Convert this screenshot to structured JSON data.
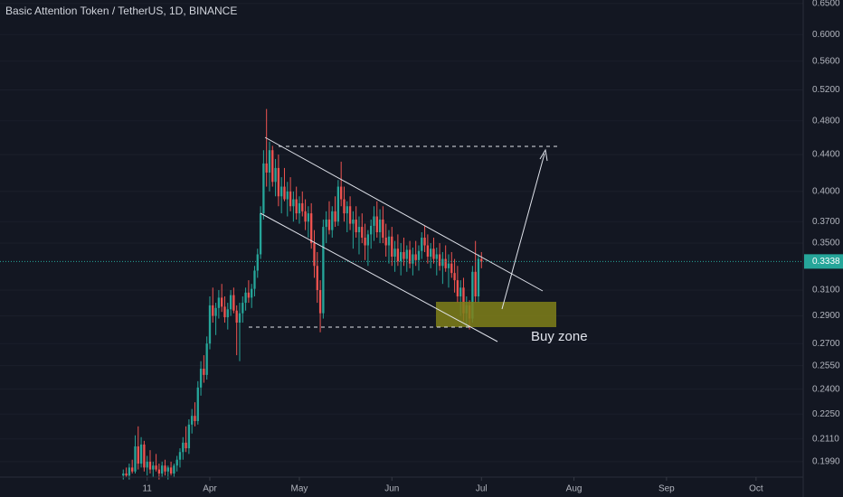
{
  "chart_data": {
    "type": "candlestick",
    "title": "Basic Attention Token / TetherUS, 1D, BINANCE",
    "log_scale": true,
    "up_color": "#26a69a",
    "down_color": "#ef5350",
    "annotation": "Buy zone",
    "last_price": 0.3338,
    "xlim": [
      20.7,
      289.8
    ],
    "xticks": [
      {
        "value": 70,
        "label": "11"
      },
      {
        "value": 91,
        "label": "Apr"
      },
      {
        "value": 121,
        "label": "May"
      },
      {
        "value": 152,
        "label": "Jun"
      },
      {
        "value": 182,
        "label": "Jul"
      },
      {
        "value": 213,
        "label": "Aug"
      },
      {
        "value": 244,
        "label": "Sep"
      },
      {
        "value": 274,
        "label": "Oct"
      }
    ],
    "ylim": [
      0.1912,
      0.656
    ],
    "yticks": [
      {
        "value": 0.65,
        "label": "0.6500"
      },
      {
        "value": 0.6,
        "label": "0.6000"
      },
      {
        "value": 0.56,
        "label": "0.5600"
      },
      {
        "value": 0.52,
        "label": "0.5200"
      },
      {
        "value": 0.48,
        "label": "0.4800"
      },
      {
        "value": 0.44,
        "label": "0.4400"
      },
      {
        "value": 0.4,
        "label": "0.4000"
      },
      {
        "value": 0.37,
        "label": "0.3700"
      },
      {
        "value": 0.35,
        "label": "0.3500"
      },
      {
        "value": 0.31,
        "label": "0.3100"
      },
      {
        "value": 0.29,
        "label": "0.2900"
      },
      {
        "value": 0.27,
        "label": "0.2700"
      },
      {
        "value": 0.255,
        "label": "0.2550"
      },
      {
        "value": 0.24,
        "label": "0.2400"
      },
      {
        "value": 0.225,
        "label": "0.2250"
      },
      {
        "value": 0.211,
        "label": "0.2110"
      },
      {
        "value": 0.199,
        "label": "0.1990"
      }
    ],
    "x": [
      62,
      63,
      64,
      65,
      66,
      67,
      68,
      69,
      70,
      71,
      72,
      73,
      74,
      75,
      76,
      77,
      78,
      79,
      80,
      81,
      82,
      83,
      84,
      85,
      86,
      87,
      88,
      89,
      90,
      91,
      92,
      93,
      94,
      95,
      96,
      97,
      98,
      99,
      100,
      101,
      102,
      103,
      104,
      105,
      106,
      107,
      108,
      109,
      110,
      111,
      112,
      113,
      114,
      115,
      116,
      117,
      118,
      119,
      120,
      121,
      122,
      123,
      124,
      125,
      126,
      127,
      128,
      129,
      130,
      131,
      132,
      133,
      134,
      135,
      136,
      137,
      138,
      139,
      140,
      141,
      142,
      143,
      144,
      145,
      146,
      147,
      148,
      149,
      150,
      151,
      152,
      153,
      154,
      155,
      156,
      157,
      158,
      159,
      160,
      161,
      162,
      163,
      164,
      165,
      166,
      167,
      168,
      169,
      170,
      171,
      172,
      173,
      174,
      175,
      176,
      177,
      178,
      179,
      180,
      181,
      182
    ],
    "candles": [
      [
        0.192,
        0.195,
        0.19,
        0.193
      ],
      [
        0.193,
        0.196,
        0.191,
        0.192
      ],
      [
        0.192,
        0.198,
        0.19,
        0.196
      ],
      [
        0.196,
        0.2,
        0.193,
        0.194
      ],
      [
        0.194,
        0.213,
        0.193,
        0.207
      ],
      [
        0.207,
        0.218,
        0.195,
        0.198
      ],
      [
        0.198,
        0.212,
        0.196,
        0.208
      ],
      [
        0.208,
        0.21,
        0.194,
        0.196
      ],
      [
        0.196,
        0.202,
        0.192,
        0.199
      ],
      [
        0.199,
        0.205,
        0.193,
        0.195
      ],
      [
        0.195,
        0.199,
        0.191,
        0.197
      ],
      [
        0.197,
        0.203,
        0.194,
        0.195
      ],
      [
        0.195,
        0.198,
        0.19,
        0.193
      ],
      [
        0.193,
        0.199,
        0.191,
        0.197
      ],
      [
        0.197,
        0.2,
        0.192,
        0.194
      ],
      [
        0.194,
        0.197,
        0.19,
        0.196
      ],
      [
        0.196,
        0.199,
        0.192,
        0.193
      ],
      [
        0.193,
        0.198,
        0.191,
        0.197
      ],
      [
        0.197,
        0.202,
        0.194,
        0.2
      ],
      [
        0.2,
        0.206,
        0.196,
        0.204
      ],
      [
        0.204,
        0.212,
        0.2,
        0.209
      ],
      [
        0.209,
        0.218,
        0.204,
        0.206
      ],
      [
        0.206,
        0.222,
        0.203,
        0.219
      ],
      [
        0.219,
        0.228,
        0.214,
        0.224
      ],
      [
        0.224,
        0.232,
        0.218,
        0.221
      ],
      [
        0.221,
        0.245,
        0.219,
        0.241
      ],
      [
        0.241,
        0.258,
        0.236,
        0.253
      ],
      [
        0.253,
        0.262,
        0.244,
        0.249
      ],
      [
        0.249,
        0.275,
        0.246,
        0.27
      ],
      [
        0.27,
        0.305,
        0.266,
        0.298
      ],
      [
        0.298,
        0.312,
        0.285,
        0.29
      ],
      [
        0.29,
        0.3,
        0.276,
        0.296
      ],
      [
        0.296,
        0.31,
        0.288,
        0.304
      ],
      [
        0.304,
        0.315,
        0.293,
        0.297
      ],
      [
        0.297,
        0.305,
        0.285,
        0.289
      ],
      [
        0.289,
        0.3,
        0.28,
        0.295
      ],
      [
        0.295,
        0.31,
        0.29,
        0.306
      ],
      [
        0.306,
        0.312,
        0.292,
        0.294
      ],
      [
        0.294,
        0.298,
        0.262,
        0.285
      ],
      [
        0.285,
        0.3,
        0.258,
        0.292
      ],
      [
        0.292,
        0.305,
        0.285,
        0.3
      ],
      [
        0.3,
        0.312,
        0.294,
        0.308
      ],
      [
        0.308,
        0.318,
        0.3,
        0.304
      ],
      [
        0.304,
        0.315,
        0.296,
        0.311
      ],
      [
        0.311,
        0.33,
        0.305,
        0.326
      ],
      [
        0.326,
        0.345,
        0.32,
        0.34
      ],
      [
        0.34,
        0.385,
        0.336,
        0.378
      ],
      [
        0.378,
        0.445,
        0.372,
        0.43
      ],
      [
        0.43,
        0.495,
        0.405,
        0.42
      ],
      [
        0.42,
        0.455,
        0.4,
        0.445
      ],
      [
        0.445,
        0.45,
        0.405,
        0.41
      ],
      [
        0.41,
        0.435,
        0.395,
        0.425
      ],
      [
        0.425,
        0.44,
        0.385,
        0.395
      ],
      [
        0.395,
        0.415,
        0.378,
        0.405
      ],
      [
        0.405,
        0.425,
        0.39,
        0.392
      ],
      [
        0.392,
        0.41,
        0.375,
        0.4
      ],
      [
        0.4,
        0.415,
        0.38,
        0.385
      ],
      [
        0.385,
        0.4,
        0.37,
        0.392
      ],
      [
        0.392,
        0.405,
        0.372,
        0.378
      ],
      [
        0.378,
        0.395,
        0.368,
        0.388
      ],
      [
        0.388,
        0.4,
        0.375,
        0.38
      ],
      [
        0.38,
        0.392,
        0.362,
        0.37
      ],
      [
        0.37,
        0.385,
        0.355,
        0.378
      ],
      [
        0.378,
        0.388,
        0.345,
        0.35
      ],
      [
        0.35,
        0.362,
        0.32,
        0.33
      ],
      [
        0.33,
        0.342,
        0.3,
        0.31
      ],
      [
        0.31,
        0.318,
        0.278,
        0.292
      ],
      [
        0.292,
        0.372,
        0.288,
        0.365
      ],
      [
        0.365,
        0.38,
        0.35,
        0.372
      ],
      [
        0.372,
        0.39,
        0.358,
        0.362
      ],
      [
        0.362,
        0.385,
        0.355,
        0.38
      ],
      [
        0.38,
        0.395,
        0.365,
        0.37
      ],
      [
        0.37,
        0.412,
        0.366,
        0.405
      ],
      [
        0.405,
        0.432,
        0.385,
        0.392
      ],
      [
        0.392,
        0.405,
        0.37,
        0.378
      ],
      [
        0.378,
        0.39,
        0.36,
        0.385
      ],
      [
        0.385,
        0.395,
        0.362,
        0.368
      ],
      [
        0.368,
        0.38,
        0.345,
        0.372
      ],
      [
        0.372,
        0.385,
        0.355,
        0.36
      ],
      [
        0.36,
        0.375,
        0.34,
        0.365
      ],
      [
        0.365,
        0.378,
        0.35,
        0.355
      ],
      [
        0.355,
        0.368,
        0.335,
        0.348
      ],
      [
        0.348,
        0.362,
        0.33,
        0.358
      ],
      [
        0.358,
        0.372,
        0.345,
        0.366
      ],
      [
        0.366,
        0.385,
        0.352,
        0.375
      ],
      [
        0.375,
        0.39,
        0.355,
        0.36
      ],
      [
        0.36,
        0.382,
        0.35,
        0.372
      ],
      [
        0.372,
        0.385,
        0.35,
        0.355
      ],
      [
        0.355,
        0.368,
        0.338,
        0.348
      ],
      [
        0.348,
        0.362,
        0.332,
        0.356
      ],
      [
        0.356,
        0.365,
        0.33,
        0.338
      ],
      [
        0.338,
        0.352,
        0.325,
        0.345
      ],
      [
        0.345,
        0.358,
        0.33,
        0.334
      ],
      [
        0.334,
        0.35,
        0.322,
        0.342
      ],
      [
        0.342,
        0.355,
        0.33,
        0.336
      ],
      [
        0.336,
        0.348,
        0.325,
        0.344
      ],
      [
        0.344,
        0.352,
        0.328,
        0.332
      ],
      [
        0.332,
        0.346,
        0.322,
        0.34
      ],
      [
        0.34,
        0.352,
        0.33,
        0.335
      ],
      [
        0.335,
        0.348,
        0.326,
        0.343
      ],
      [
        0.343,
        0.36,
        0.336,
        0.355
      ],
      [
        0.355,
        0.366,
        0.342,
        0.348
      ],
      [
        0.348,
        0.358,
        0.332,
        0.338
      ],
      [
        0.338,
        0.35,
        0.328,
        0.345
      ],
      [
        0.345,
        0.355,
        0.332,
        0.336
      ],
      [
        0.336,
        0.346,
        0.322,
        0.34
      ],
      [
        0.34,
        0.35,
        0.326,
        0.33
      ],
      [
        0.33,
        0.342,
        0.315,
        0.336
      ],
      [
        0.336,
        0.348,
        0.325,
        0.328
      ],
      [
        0.328,
        0.34,
        0.312,
        0.332
      ],
      [
        0.332,
        0.342,
        0.32,
        0.324
      ],
      [
        0.324,
        0.336,
        0.308,
        0.318
      ],
      [
        0.318,
        0.33,
        0.3,
        0.305
      ],
      [
        0.305,
        0.318,
        0.29,
        0.312
      ],
      [
        0.312,
        0.32,
        0.286,
        0.292
      ],
      [
        0.292,
        0.305,
        0.282,
        0.298
      ],
      [
        0.298,
        0.302,
        0.28,
        0.288
      ],
      [
        0.288,
        0.33,
        0.285,
        0.325
      ],
      [
        0.325,
        0.352,
        0.3,
        0.305
      ],
      [
        0.305,
        0.34,
        0.3,
        0.336
      ],
      [
        0.336,
        0.342,
        0.328,
        0.3338
      ]
    ]
  }
}
